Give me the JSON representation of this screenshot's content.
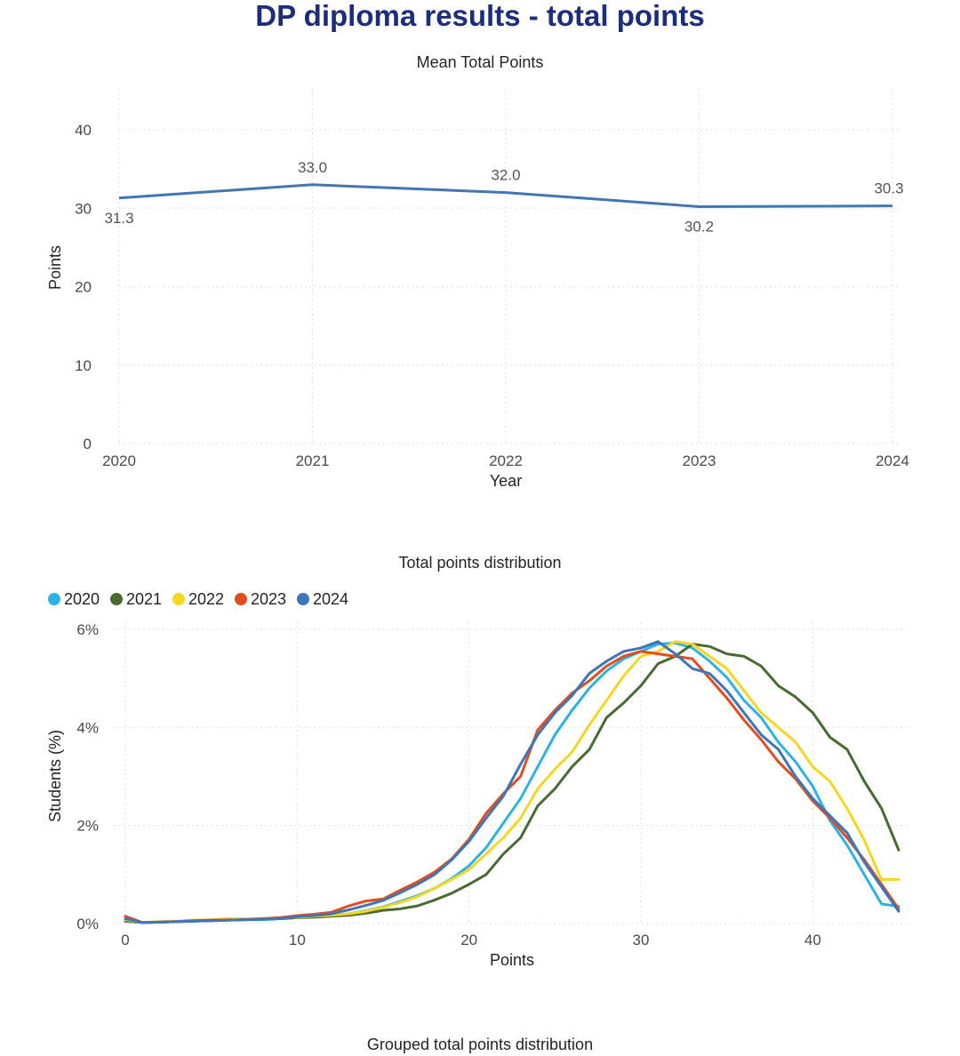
{
  "page": {
    "title": "DP diploma results - total points"
  },
  "chart_data": [
    {
      "type": "line",
      "title": "Mean Total Points",
      "xlabel": "Year",
      "ylabel": "Points",
      "categories": [
        "2020",
        "2021",
        "2022",
        "2023",
        "2024"
      ],
      "values": [
        31.3,
        33.0,
        32.0,
        30.2,
        30.3
      ],
      "data_labels": [
        "31.3",
        "33.0",
        "32.0",
        "30.2",
        "30.3"
      ],
      "ylim": [
        0,
        45
      ],
      "yticks": [
        "0",
        "10",
        "20",
        "30",
        "40"
      ],
      "ytick_values": [
        0,
        10,
        20,
        30,
        40
      ],
      "grid": true,
      "color": "#4277b4"
    },
    {
      "type": "line",
      "title": "Total points distribution",
      "xlabel": "Points",
      "ylabel": "Students (%)",
      "xlim": [
        0,
        45
      ],
      "ylim": [
        0,
        6
      ],
      "xticks": [
        "0",
        "10",
        "20",
        "30",
        "40"
      ],
      "xtick_values": [
        0,
        10,
        20,
        30,
        40
      ],
      "yticks": [
        "0%",
        "2%",
        "4%",
        "6%"
      ],
      "ytick_values": [
        0,
        2,
        4,
        6
      ],
      "legend_position": "top-left",
      "grid": true,
      "x": [
        0,
        1,
        2,
        3,
        4,
        5,
        6,
        7,
        8,
        9,
        10,
        11,
        12,
        13,
        14,
        15,
        16,
        17,
        18,
        19,
        20,
        21,
        22,
        23,
        24,
        25,
        26,
        27,
        28,
        29,
        30,
        31,
        32,
        33,
        34,
        35,
        36,
        37,
        38,
        39,
        40,
        41,
        42,
        43,
        44,
        45
      ],
      "series": [
        {
          "name": "2020",
          "color": "#2bb3e6",
          "values": [
            0.05,
            0.02,
            0.03,
            0.04,
            0.05,
            0.06,
            0.07,
            0.08,
            0.08,
            0.1,
            0.12,
            0.14,
            0.17,
            0.2,
            0.26,
            0.34,
            0.45,
            0.57,
            0.72,
            0.92,
            1.18,
            1.55,
            2.05,
            2.55,
            3.2,
            3.85,
            4.35,
            4.8,
            5.15,
            5.4,
            5.55,
            5.7,
            5.72,
            5.62,
            5.35,
            5.02,
            4.55,
            4.2,
            3.7,
            3.3,
            2.8,
            2.1,
            1.6,
            1.0,
            0.4,
            0.35
          ]
        },
        {
          "name": "2021",
          "color": "#476b30",
          "values": [
            0.05,
            0.02,
            0.03,
            0.04,
            0.05,
            0.06,
            0.07,
            0.08,
            0.09,
            0.1,
            0.12,
            0.13,
            0.15,
            0.17,
            0.21,
            0.27,
            0.3,
            0.36,
            0.48,
            0.62,
            0.8,
            1.0,
            1.42,
            1.75,
            2.4,
            2.75,
            3.2,
            3.55,
            4.2,
            4.5,
            4.85,
            5.3,
            5.45,
            5.7,
            5.65,
            5.5,
            5.45,
            5.25,
            4.85,
            4.62,
            4.3,
            3.8,
            3.55,
            2.9,
            2.35,
            1.5
          ]
        },
        {
          "name": "2022",
          "color": "#f6d61f",
          "values": [
            0.08,
            0.02,
            0.04,
            0.05,
            0.07,
            0.08,
            0.1,
            0.1,
            0.1,
            0.12,
            0.13,
            0.15,
            0.17,
            0.2,
            0.25,
            0.33,
            0.43,
            0.55,
            0.72,
            0.9,
            1.1,
            1.42,
            1.75,
            2.15,
            2.75,
            3.15,
            3.5,
            4.05,
            4.55,
            5.05,
            5.45,
            5.55,
            5.75,
            5.7,
            5.45,
            5.2,
            4.75,
            4.3,
            4.0,
            3.7,
            3.2,
            2.9,
            2.35,
            1.7,
            0.9,
            0.9
          ]
        },
        {
          "name": "2023",
          "color": "#e44d1b",
          "values": [
            0.15,
            0.02,
            0.03,
            0.04,
            0.06,
            0.07,
            0.07,
            0.08,
            0.1,
            0.12,
            0.16,
            0.19,
            0.23,
            0.36,
            0.46,
            0.5,
            0.68,
            0.85,
            1.05,
            1.32,
            1.72,
            2.25,
            2.65,
            3.0,
            3.95,
            4.35,
            4.7,
            4.95,
            5.25,
            5.45,
            5.55,
            5.5,
            5.45,
            5.4,
            5.0,
            4.6,
            4.15,
            3.75,
            3.3,
            2.95,
            2.5,
            2.15,
            1.75,
            1.3,
            0.8,
            0.3
          ]
        },
        {
          "name": "2024",
          "color": "#3d76bb",
          "values": [
            0.1,
            0.02,
            0.03,
            0.04,
            0.05,
            0.06,
            0.07,
            0.08,
            0.09,
            0.1,
            0.14,
            0.16,
            0.2,
            0.28,
            0.37,
            0.47,
            0.63,
            0.8,
            1.0,
            1.3,
            1.68,
            2.15,
            2.6,
            3.25,
            3.85,
            4.3,
            4.65,
            5.1,
            5.35,
            5.55,
            5.62,
            5.75,
            5.5,
            5.2,
            5.1,
            4.75,
            4.3,
            3.85,
            3.55,
            3.0,
            2.55,
            2.2,
            1.85,
            1.25,
            0.75,
            0.25
          ]
        }
      ]
    },
    {
      "type": "bar",
      "title": "Grouped total points distribution"
    }
  ]
}
